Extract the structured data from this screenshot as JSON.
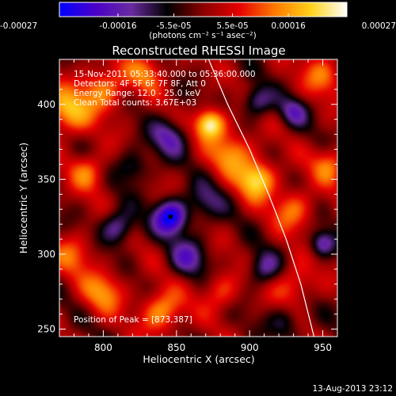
{
  "chart_data": {
    "type": "heatmap",
    "title": "Reconstructed RHESSI Image",
    "xlabel": "Heliocentric X (arcsec)",
    "ylabel": "Heliocentric Y (arcsec)",
    "xlim": [
      770,
      960
    ],
    "ylim": [
      245,
      430
    ],
    "xticks": [
      "800",
      "850",
      "900",
      "950"
    ],
    "yticks": [
      "250",
      "300",
      "350",
      "400"
    ],
    "colorbar": {
      "range": [
        -0.00027,
        0.00027
      ],
      "ticks": [
        "-0.00027",
        "-0.00016",
        "-5.5e-05",
        "5.5e-05",
        "0.00016",
        "0.00027"
      ],
      "label": "(photons cm⁻² s⁻¹ asec⁻²)",
      "colormap": [
        "#0000ff",
        "#4b00c8",
        "#6a2aa0",
        "#000000",
        "#8a0000",
        "#e60000",
        "#ff7a00",
        "#ffd21a",
        "#ffffff"
      ]
    },
    "annotations": [
      "15-Nov-2011 05:33:40.000 to 05:36:00.000",
      "Detectors: 4F 5F 6F 7F 8F, Att 0",
      "Energy Range: 12.0 - 25.0 keV",
      "Clean     Total counts: 3.67E+03"
    ],
    "peak_label": "Position of Peak = [873,387]",
    "peak": [
      873,
      387
    ],
    "min_marker": [
      846,
      325
    ],
    "limb_curve": [
      [
        872,
        430
      ],
      [
        885,
        400
      ],
      [
        900,
        370
      ],
      [
        913,
        340
      ],
      [
        925,
        310
      ],
      [
        935,
        280
      ],
      [
        944,
        245
      ]
    ],
    "sources": [
      {
        "x": 873,
        "y": 387,
        "v": 0.00027,
        "s": 7
      },
      {
        "x": 905,
        "y": 350,
        "v": 0.00022,
        "s": 9
      },
      {
        "x": 888,
        "y": 368,
        "v": 0.00016,
        "s": 10
      },
      {
        "x": 930,
        "y": 330,
        "v": 0.00013,
        "s": 10
      },
      {
        "x": 775,
        "y": 395,
        "v": 0.00018,
        "s": 11
      },
      {
        "x": 800,
        "y": 410,
        "v": 0.00015,
        "s": 11
      },
      {
        "x": 790,
        "y": 355,
        "v": 0.00013,
        "s": 9
      },
      {
        "x": 780,
        "y": 300,
        "v": 0.00011,
        "s": 10
      },
      {
        "x": 800,
        "y": 275,
        "v": 0.00014,
        "s": 10
      },
      {
        "x": 840,
        "y": 262,
        "v": 0.00017,
        "s": 10
      },
      {
        "x": 880,
        "y": 275,
        "v": 0.00011,
        "s": 9
      },
      {
        "x": 930,
        "y": 280,
        "v": 0.00012,
        "s": 10
      },
      {
        "x": 955,
        "y": 360,
        "v": 0.00013,
        "s": 9
      },
      {
        "x": 950,
        "y": 420,
        "v": 0.00012,
        "s": 10
      },
      {
        "x": 830,
        "y": 422,
        "v": 0.00012,
        "s": 9
      },
      {
        "x": 846,
        "y": 325,
        "v": -0.00027,
        "s": 8
      },
      {
        "x": 810,
        "y": 318,
        "v": -0.00016,
        "s": 8
      },
      {
        "x": 845,
        "y": 378,
        "v": -0.00014,
        "s": 9
      },
      {
        "x": 905,
        "y": 402,
        "v": -0.00015,
        "s": 7
      },
      {
        "x": 930,
        "y": 395,
        "v": -0.00013,
        "s": 7
      },
      {
        "x": 858,
        "y": 298,
        "v": -0.00014,
        "s": 9
      },
      {
        "x": 910,
        "y": 290,
        "v": -0.00013,
        "s": 8
      },
      {
        "x": 950,
        "y": 307,
        "v": -0.00016,
        "s": 6
      },
      {
        "x": 820,
        "y": 358,
        "v": -0.00011,
        "s": 8
      },
      {
        "x": 870,
        "y": 335,
        "v": -0.0001,
        "s": 9
      },
      {
        "x": 925,
        "y": 255,
        "v": -0.0001,
        "s": 8
      }
    ]
  },
  "footer": {
    "timestamp": "13-Aug-2013 23:12"
  }
}
